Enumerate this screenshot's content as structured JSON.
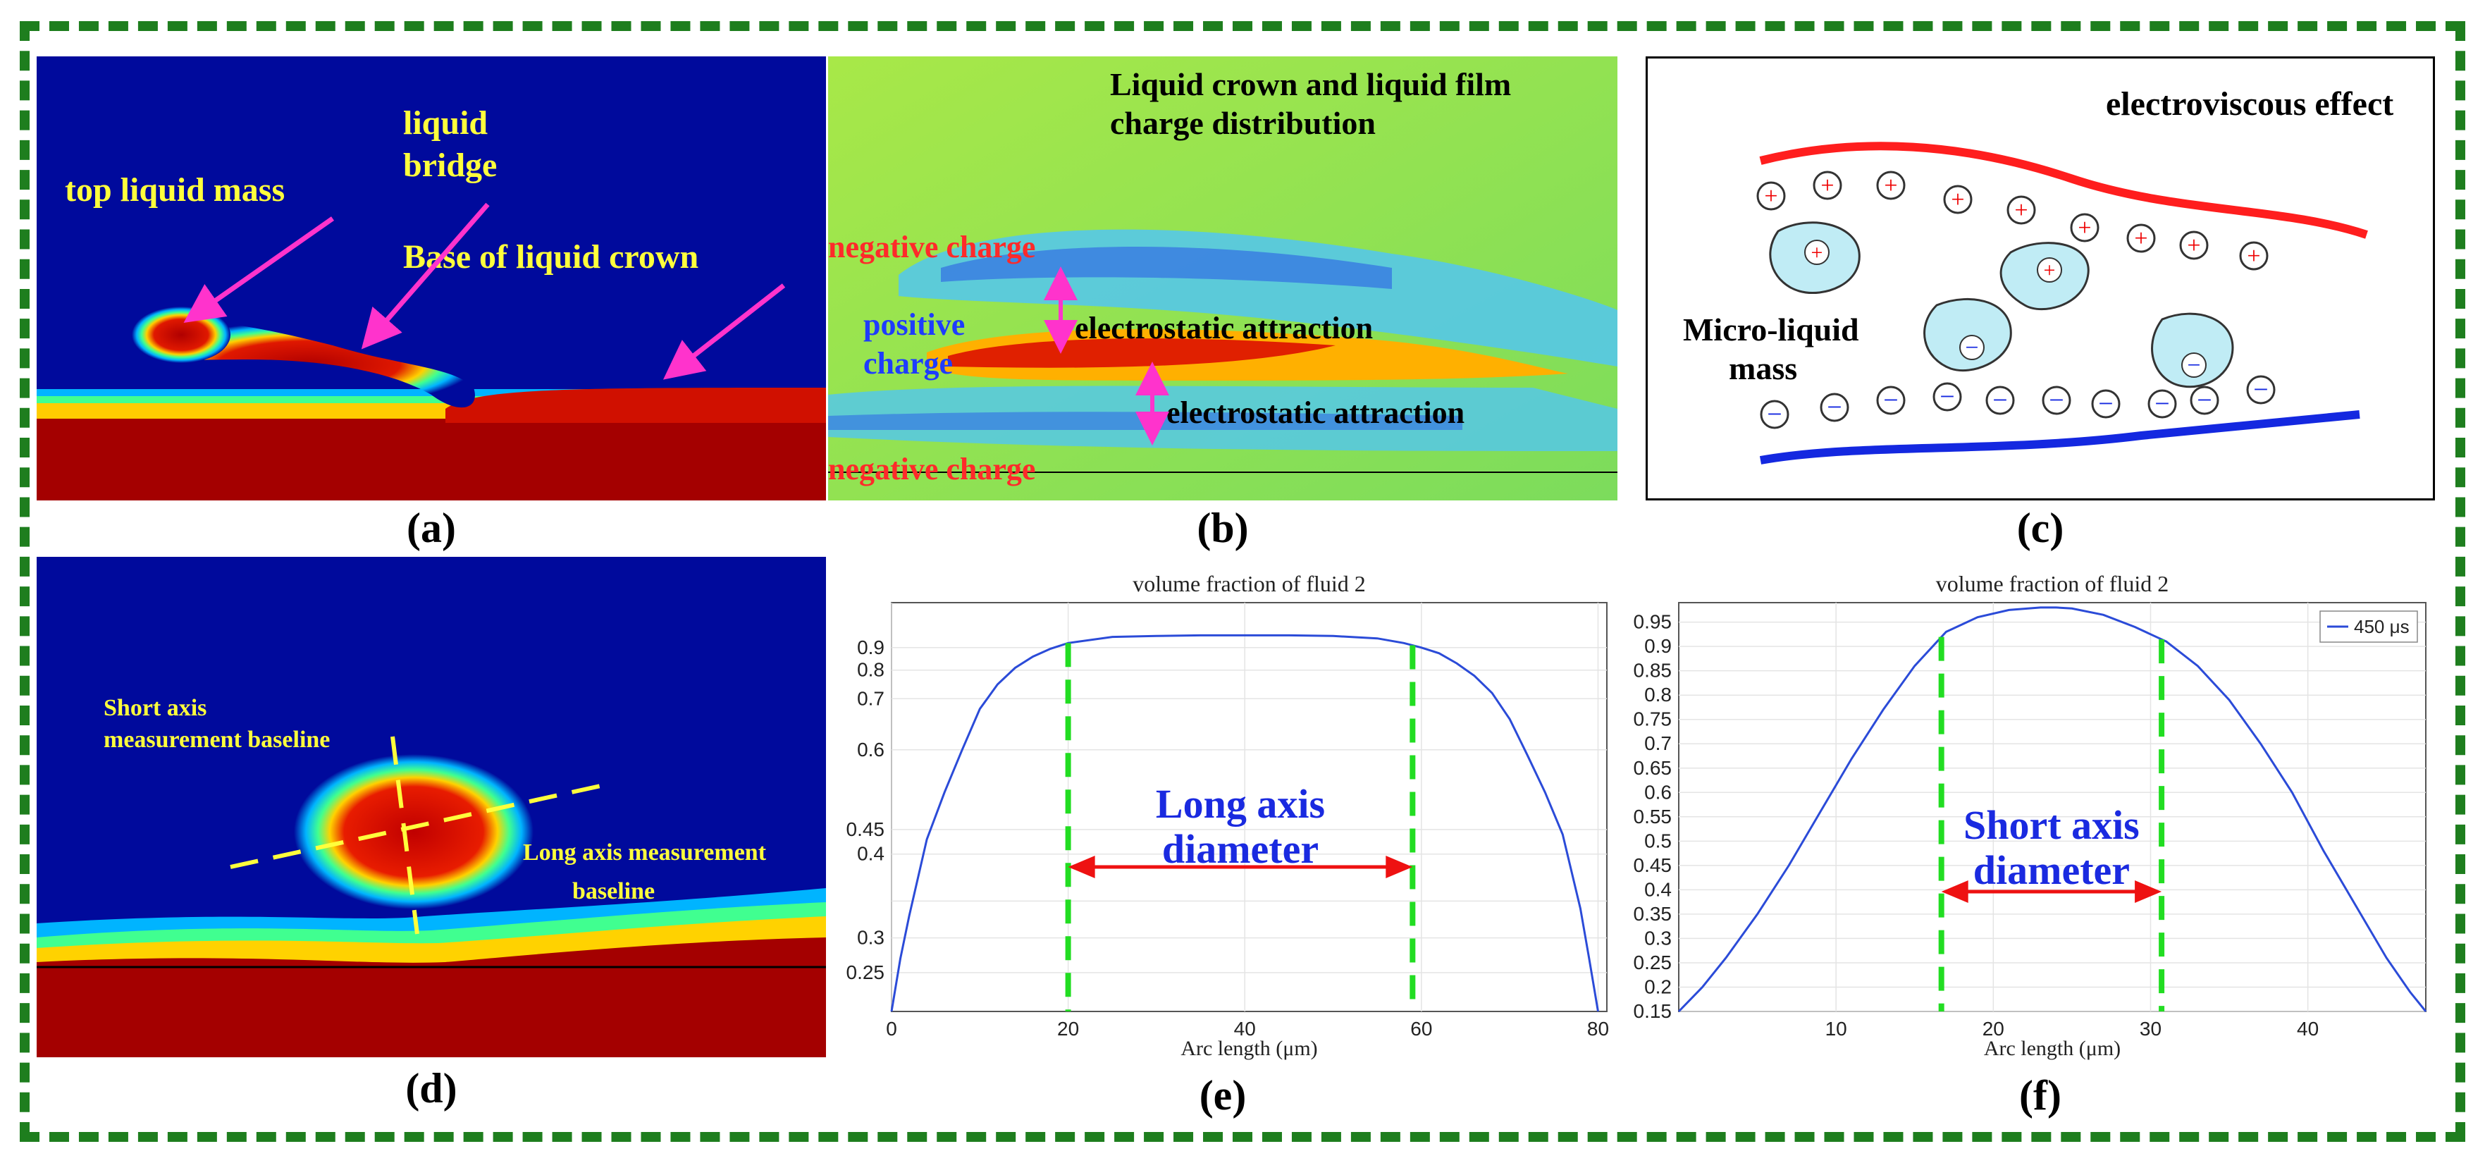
{
  "figure": {
    "panel_labels": [
      "(a)",
      "(b)",
      "(c)",
      "(d)",
      "(e)",
      "(f)"
    ],
    "a": {
      "labels": [
        "top liquid mass",
        "liquid",
        "bridge",
        "Base of liquid crown"
      ],
      "text_color": "#ffff3c",
      "arrow_color": "#ff33cc"
    },
    "b": {
      "title": [
        "Liquid crown and liquid film",
        "charge distribution"
      ],
      "negative_charge": "negative charge",
      "positive_charge": [
        "positive",
        "charge"
      ],
      "electrostatic_attraction": "electrostatic attraction"
    },
    "c": {
      "title": "electroviscous effect",
      "micro_liquid_mass": [
        "Micro-liquid",
        "mass"
      ],
      "plus": "+",
      "minus": "−"
    },
    "d": {
      "short_axis": [
        "Short axis",
        "measurement baseline"
      ],
      "long_axis": [
        "Long axis measurement",
        "baseline"
      ]
    },
    "e": {
      "annotation": [
        "Long axis",
        "diameter"
      ]
    },
    "f": {
      "annotation": [
        "Short axis",
        "diameter"
      ],
      "legend": "450 μs"
    }
  },
  "chart_data": [
    {
      "id": "e",
      "type": "line",
      "title": "volume fraction of fluid 2",
      "xlabel": "Arc length (μm)",
      "ylabel": "",
      "xlim": [
        0,
        81
      ],
      "ylim": [
        0.2,
        0.98
      ],
      "xticks": [
        0,
        20,
        40,
        60,
        80
      ],
      "yticks": [
        0.25,
        0.3,
        0.35,
        0.4,
        0.45,
        0.6,
        0.7,
        0.8,
        0.9
      ],
      "ytick_labels": [
        "0.25",
        "0.3",
        "",
        "0.4",
        "0.45",
        "0.6",
        "0.7",
        "0.8",
        "0.9"
      ],
      "x": [
        0,
        1,
        2,
        4,
        6,
        8,
        10,
        12,
        14,
        16,
        18,
        20,
        25,
        30,
        35,
        40,
        45,
        50,
        55,
        58,
        60,
        62,
        64,
        66,
        68,
        70,
        72,
        74,
        76,
        78,
        79,
        80
      ],
      "y": [
        0.2,
        0.27,
        0.33,
        0.43,
        0.52,
        0.6,
        0.68,
        0.75,
        0.81,
        0.86,
        0.895,
        0.915,
        0.935,
        0.938,
        0.94,
        0.94,
        0.94,
        0.938,
        0.93,
        0.915,
        0.9,
        0.875,
        0.83,
        0.78,
        0.72,
        0.66,
        0.59,
        0.52,
        0.44,
        0.34,
        0.27,
        0.2
      ],
      "markers": [
        20,
        59
      ],
      "arrow": [
        20,
        59
      ]
    },
    {
      "id": "f",
      "type": "line",
      "title": "volume fraction of fluid 2",
      "xlabel": "Arc length (μm)",
      "ylabel": "",
      "xlim": [
        0,
        47.5
      ],
      "ylim": [
        0.15,
        0.99
      ],
      "xticks": [
        10,
        20,
        30,
        40
      ],
      "yticks": [
        0.15,
        0.2,
        0.25,
        0.3,
        0.35,
        0.4,
        0.45,
        0.5,
        0.55,
        0.6,
        0.65,
        0.7,
        0.75,
        0.8,
        0.85,
        0.9,
        0.95
      ],
      "ytick_labels": [
        "0.15",
        "0.2",
        "0.25",
        "0.3",
        "0.35",
        "0.4",
        "0.45",
        "0.5",
        "0.55",
        "0.6",
        "0.65",
        "0.7",
        "0.75",
        "0.8",
        "0.85",
        "0.9",
        "0.95"
      ],
      "x": [
        0,
        1.5,
        3,
        5,
        7,
        9,
        11,
        13,
        15,
        17,
        19,
        21,
        23,
        24,
        25,
        27,
        29,
        31,
        33,
        35,
        37,
        39,
        41,
        43,
        45,
        46.5,
        47.5
      ],
      "y": [
        0.15,
        0.2,
        0.26,
        0.35,
        0.45,
        0.56,
        0.67,
        0.77,
        0.86,
        0.93,
        0.96,
        0.975,
        0.98,
        0.98,
        0.978,
        0.965,
        0.94,
        0.91,
        0.86,
        0.79,
        0.7,
        0.6,
        0.48,
        0.37,
        0.26,
        0.19,
        0.15
      ],
      "markers": [
        16.7,
        30.7
      ],
      "arrow": [
        16.7,
        30.7
      ],
      "legend": "450 μs"
    }
  ]
}
